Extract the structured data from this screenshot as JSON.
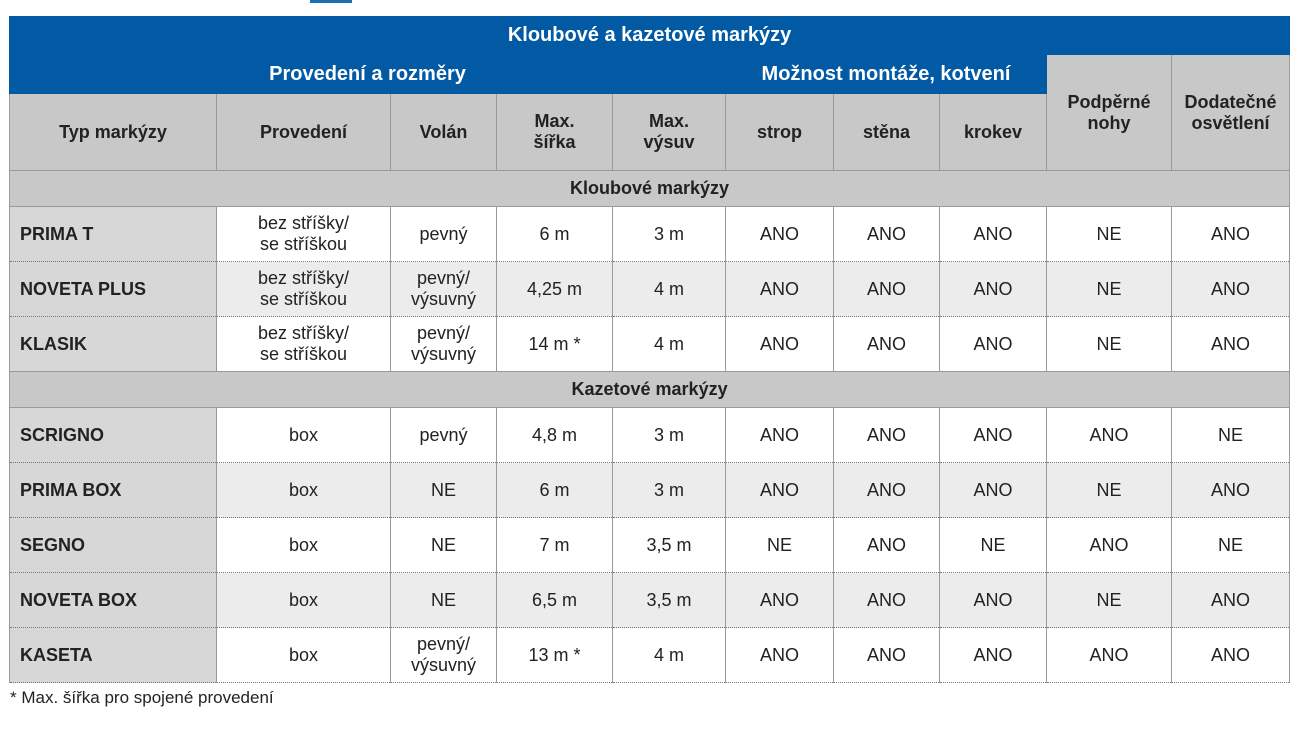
{
  "table": {
    "title": "Kloubové a kazetové markýzy",
    "group_provedeni": "Provedení a rozměry",
    "group_montaz": "Možnost montáže, kotvení",
    "columns": {
      "typ": "Typ markýzy",
      "provedeni": "Provedení",
      "volan": "Volán",
      "sirka_1": "Max.",
      "sirka_2": "šířka",
      "vysuv_1": "Max.",
      "vysuv_2": "výsuv",
      "strop": "strop",
      "stena": "stěna",
      "krokev": "krokev",
      "nohy_1": "Podpěrné",
      "nohy_2": "nohy",
      "osvetleni_1": "Dodatečné",
      "osvetleni_2": "osvětlení"
    },
    "section_kloubove": "Kloubové markýzy",
    "section_kazetove": "Kazetové markýzy",
    "kloubove": [
      {
        "typ": "PRIMA T",
        "provedeni_1": "bez stříšky/",
        "provedeni_2": "se stříškou",
        "volan_1": "pevný",
        "volan_2": "",
        "sirka": "6 m",
        "vysuv": "3 m",
        "strop": "ANO",
        "stena": "ANO",
        "krokev": "ANO",
        "nohy": "NE",
        "osvetleni": "ANO"
      },
      {
        "typ": "NOVETA PLUS",
        "provedeni_1": "bez stříšky/",
        "provedeni_2": "se stříškou",
        "volan_1": "pevný/",
        "volan_2": "výsuvný",
        "sirka": "4,25 m",
        "vysuv": "4 m",
        "strop": "ANO",
        "stena": "ANO",
        "krokev": "ANO",
        "nohy": "NE",
        "osvetleni": "ANO"
      },
      {
        "typ": "KLASIK",
        "provedeni_1": "bez stříšky/",
        "provedeni_2": "se stříškou",
        "volan_1": "pevný/",
        "volan_2": "výsuvný",
        "sirka": "14 m *",
        "vysuv": "4 m",
        "strop": "ANO",
        "stena": "ANO",
        "krokev": "ANO",
        "nohy": "NE",
        "osvetleni": "ANO"
      }
    ],
    "kazetove": [
      {
        "typ": "SCRIGNO",
        "provedeni": "box",
        "volan_1": "pevný",
        "volan_2": "",
        "sirka": "4,8 m",
        "vysuv": "3 m",
        "strop": "ANO",
        "stena": "ANO",
        "krokev": "ANO",
        "nohy": "ANO",
        "osvetleni": "NE"
      },
      {
        "typ": "PRIMA BOX",
        "provedeni": "box",
        "volan_1": "NE",
        "volan_2": "",
        "sirka": "6 m",
        "vysuv": "3 m",
        "strop": "ANO",
        "stena": "ANO",
        "krokev": "ANO",
        "nohy": "NE",
        "osvetleni": "ANO"
      },
      {
        "typ": "SEGNO",
        "provedeni": "box",
        "volan_1": "NE",
        "volan_2": "",
        "sirka": "7 m",
        "vysuv": "3,5 m",
        "strop": "NE",
        "stena": "ANO",
        "krokev": "NE",
        "nohy": "ANO",
        "osvetleni": "NE"
      },
      {
        "typ": "NOVETA BOX",
        "provedeni": "box",
        "volan_1": "NE",
        "volan_2": "",
        "sirka": "6,5 m",
        "vysuv": "3,5 m",
        "strop": "ANO",
        "stena": "ANO",
        "krokev": "ANO",
        "nohy": "NE",
        "osvetleni": "ANO"
      },
      {
        "typ": "KASETA",
        "provedeni": "box",
        "volan_1": "pevný/",
        "volan_2": "výsuvný",
        "sirka": "13 m *",
        "vysuv": "4 m",
        "strop": "ANO",
        "stena": "ANO",
        "krokev": "ANO",
        "nohy": "ANO",
        "osvetleni": "ANO"
      }
    ],
    "footnote": "* Max. šířka pro spojené provedení"
  }
}
